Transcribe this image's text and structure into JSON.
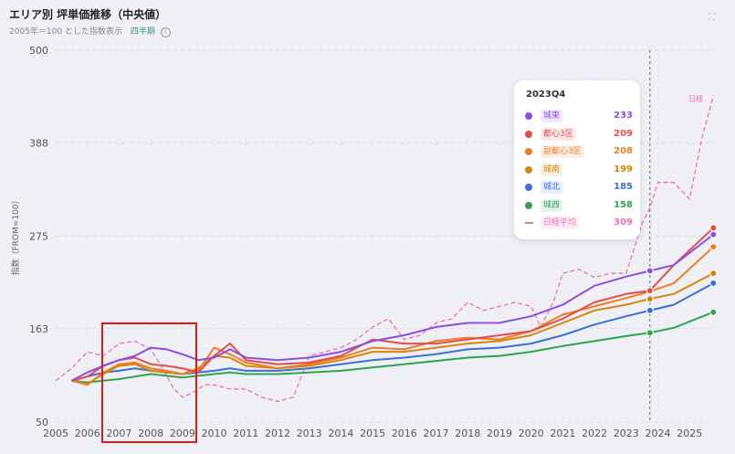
{
  "header": {
    "title": "エリア別 坪単価推移（中央値）",
    "subtitle": "2005年＝100 とした指数表示",
    "period": "四半期",
    "info_icon": "info-icon",
    "expand_icon": "expand-icon"
  },
  "tooltip": {
    "title": "2023Q4",
    "rows": [
      {
        "name": "城東",
        "value": "233",
        "color": "#8a4fe0"
      },
      {
        "name": "都心3区",
        "value": "209",
        "color": "#e54b4b"
      },
      {
        "name": "副都心3区",
        "value": "208",
        "color": "#f07c22"
      },
      {
        "name": "城南",
        "value": "199",
        "color": "#d4870a"
      },
      {
        "name": "城北",
        "value": "185",
        "color": "#3a6fd8"
      },
      {
        "name": "城西",
        "value": "158",
        "color": "#2ea44f"
      },
      {
        "name": "日経平均",
        "value": "309",
        "color": "#ef6fae"
      }
    ]
  },
  "chart_data": {
    "type": "line",
    "ylabel": "指数（FROM=100）",
    "ylim": [
      50,
      500
    ],
    "yticks": [
      "50",
      "163",
      "275",
      "388",
      "500"
    ],
    "xticks": [
      "2005",
      "2006",
      "2007",
      "2008",
      "2009",
      "2010",
      "2011",
      "2012",
      "2013",
      "2014",
      "2015",
      "2016",
      "2017",
      "2018",
      "2019",
      "2020",
      "2021",
      "2022",
      "2023",
      "2024",
      "2025"
    ],
    "xlim": [
      2005.0,
      2025.8
    ],
    "marker_x": 2023.75,
    "series": [
      {
        "name": "城東",
        "color": "#8a4fe0",
        "x": [
          2005.5,
          2006,
          2006.5,
          2007,
          2007.5,
          2008,
          2008.5,
          2009,
          2009.5,
          2010,
          2010.5,
          2011,
          2012,
          2013,
          2014,
          2015,
          2016,
          2017,
          2018,
          2019,
          2020,
          2021,
          2022,
          2023,
          2023.75,
          2024.5,
          2025.75
        ],
        "y": [
          100,
          110,
          118,
          125,
          130,
          140,
          138,
          132,
          125,
          128,
          138,
          128,
          125,
          128,
          135,
          148,
          155,
          165,
          170,
          170,
          178,
          192,
          215,
          226,
          233,
          240,
          277
        ]
      },
      {
        "name": "都心3区",
        "color": "#e54b4b",
        "x": [
          2005.5,
          2006,
          2006.5,
          2007,
          2007.5,
          2008,
          2008.5,
          2009,
          2009.5,
          2010,
          2010.5,
          2011,
          2012,
          2013,
          2014,
          2015,
          2016,
          2017,
          2018,
          2019,
          2020,
          2021,
          2022,
          2023,
          2023.75,
          2024.5,
          2025.75
        ],
        "y": [
          100,
          105,
          118,
          125,
          128,
          120,
          118,
          115,
          110,
          130,
          145,
          125,
          120,
          122,
          130,
          150,
          145,
          145,
          150,
          155,
          160,
          175,
          195,
          205,
          209,
          240,
          285
        ]
      },
      {
        "name": "副都心3区",
        "color": "#f07c22",
        "x": [
          2005.5,
          2006,
          2006.5,
          2007,
          2007.5,
          2008,
          2008.5,
          2009,
          2009.5,
          2010,
          2010.5,
          2011,
          2012,
          2013,
          2014,
          2015,
          2016,
          2017,
          2018,
          2019,
          2020,
          2021,
          2022,
          2023,
          2023.75,
          2024.5,
          2025.75
        ],
        "y": [
          100,
          95,
          110,
          120,
          122,
          115,
          112,
          108,
          112,
          140,
          132,
          122,
          115,
          120,
          128,
          140,
          138,
          148,
          152,
          150,
          160,
          180,
          190,
          200,
          208,
          218,
          262
        ]
      },
      {
        "name": "城南",
        "color": "#d4870a",
        "x": [
          2005.5,
          2006,
          2006.5,
          2007,
          2007.5,
          2008,
          2008.5,
          2009,
          2009.5,
          2010,
          2010.5,
          2011,
          2012,
          2013,
          2014,
          2015,
          2016,
          2017,
          2018,
          2019,
          2020,
          2021,
          2022,
          2023,
          2023.75,
          2024.5,
          2025.75
        ],
        "y": [
          100,
          96,
          108,
          118,
          120,
          112,
          110,
          108,
          115,
          130,
          128,
          118,
          115,
          118,
          125,
          135,
          135,
          140,
          145,
          148,
          155,
          170,
          185,
          192,
          199,
          205,
          230
        ]
      },
      {
        "name": "城北",
        "color": "#3a6fd8",
        "x": [
          2005.5,
          2006,
          2006.5,
          2007,
          2007.5,
          2008,
          2008.5,
          2009,
          2009.5,
          2010,
          2010.5,
          2011,
          2012,
          2013,
          2014,
          2015,
          2016,
          2017,
          2018,
          2019,
          2020,
          2021,
          2022,
          2023,
          2023.75,
          2024.5,
          2025.75
        ],
        "y": [
          100,
          105,
          110,
          112,
          115,
          112,
          110,
          108,
          110,
          112,
          115,
          112,
          112,
          115,
          120,
          125,
          128,
          132,
          138,
          140,
          145,
          155,
          168,
          178,
          185,
          192,
          218
        ]
      },
      {
        "name": "城西",
        "color": "#2ea44f",
        "x": [
          2005.5,
          2006,
          2006.5,
          2007,
          2007.5,
          2008,
          2008.5,
          2009,
          2009.5,
          2010,
          2010.5,
          2011,
          2012,
          2013,
          2014,
          2015,
          2016,
          2017,
          2018,
          2019,
          2020,
          2021,
          2022,
          2023,
          2023.75,
          2024.5,
          2025.75
        ],
        "y": [
          100,
          98,
          100,
          102,
          105,
          108,
          106,
          104,
          106,
          108,
          110,
          108,
          108,
          110,
          112,
          116,
          120,
          124,
          128,
          130,
          135,
          142,
          148,
          154,
          158,
          164,
          183
        ]
      },
      {
        "name": "日経平均",
        "color": "#ef6fae",
        "dashed": true,
        "x": [
          2005.0,
          2005.5,
          2006,
          2006.5,
          2007,
          2007.5,
          2008,
          2008.3,
          2008.7,
          2009,
          2009.3,
          2009.7,
          2010,
          2010.5,
          2011,
          2011.5,
          2012,
          2012.5,
          2013,
          2013.5,
          2014,
          2014.5,
          2015,
          2015.5,
          2016,
          2016.5,
          2017,
          2017.5,
          2018,
          2018.5,
          2019,
          2019.5,
          2020,
          2020.3,
          2020.7,
          2021,
          2021.5,
          2022,
          2022.5,
          2023,
          2023.5,
          2023.75,
          2024,
          2024.5,
          2025,
          2025.4,
          2025.75
        ],
        "y": [
          100,
          115,
          135,
          130,
          145,
          148,
          138,
          120,
          92,
          80,
          85,
          95,
          95,
          90,
          90,
          80,
          75,
          80,
          130,
          135,
          140,
          150,
          165,
          175,
          150,
          155,
          170,
          175,
          195,
          185,
          190,
          195,
          190,
          165,
          195,
          230,
          235,
          225,
          230,
          230,
          290,
          309,
          340,
          340,
          320,
          395,
          445
        ]
      }
    ]
  },
  "annotation": {
    "nikkei_label": "日経"
  }
}
